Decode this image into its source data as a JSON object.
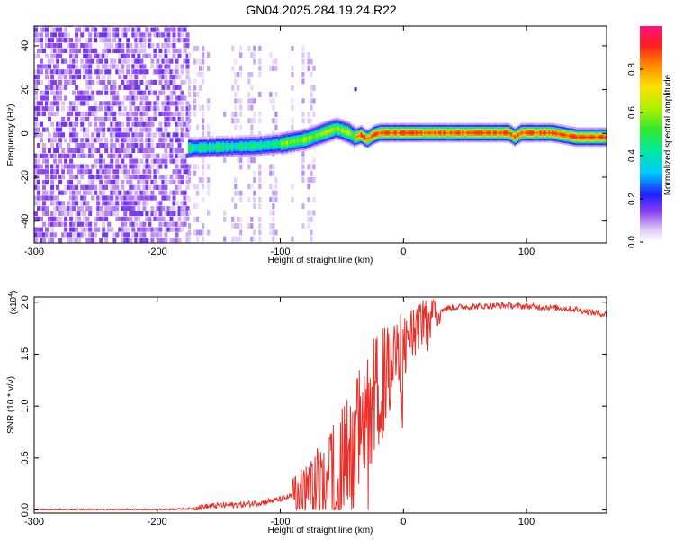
{
  "title": "GN04.2025.284.19.24.R22",
  "chart_data": [
    {
      "type": "heatmap",
      "title": "GN04.2025.284.19.24.R22",
      "xlabel": "Height of straight line (km)",
      "ylabel": "Frequency (Hz)",
      "xlim": [
        -300,
        165
      ],
      "ylim": [
        -50,
        49
      ],
      "xticks": [
        -300,
        -200,
        -100,
        0,
        100
      ],
      "yticks": [
        -40,
        -20,
        0,
        20,
        40
      ],
      "colorbar": {
        "label": "Normalized spectral amplitude",
        "range": [
          0,
          1
        ],
        "ticks": [
          "0.0",
          "0.2",
          "0.4",
          "0.6",
          "0.8"
        ]
      },
      "noise_region_km": [
        -300,
        -175
      ],
      "sparse_region_km": [
        -175,
        -100
      ],
      "signal_track": {
        "x": [
          -175,
          -150,
          -120,
          -100,
          -80,
          -65,
          -55,
          -45,
          -40,
          -35,
          -30,
          -25,
          -20,
          0,
          20,
          50,
          85,
          90,
          95,
          120,
          140,
          165
        ],
        "freq": [
          -7,
          -6.5,
          -6,
          -5,
          -3,
          0,
          2,
          0,
          -2,
          -1,
          -3,
          -1,
          0,
          0,
          0,
          0,
          0,
          -2,
          0,
          0,
          -2,
          -2
        ]
      }
    },
    {
      "type": "line",
      "xlabel": "Height of straight line (km)",
      "ylabel": "SNR (10 * v/v)",
      "yscale_label": "(x10^4)",
      "xlim": [
        -300,
        165
      ],
      "ylim": [
        -0.03,
        2.05
      ],
      "xticks": [
        -300,
        -200,
        -100,
        0,
        100
      ],
      "yticks": [
        "0.0",
        "0.5",
        "1.0",
        "1.5",
        "2.0"
      ],
      "series": [
        {
          "name": "SNR",
          "color": "#e8302a",
          "x": [
            -300,
            -200,
            -170,
            -150,
            -130,
            -115,
            -100,
            -85,
            -70,
            -55,
            -45,
            -35,
            -25,
            -15,
            -5,
            5,
            15,
            25,
            40,
            60,
            80,
            100,
            120,
            140,
            165
          ],
          "y": [
            0.0,
            0.0,
            0.01,
            0.03,
            0.04,
            0.06,
            0.09,
            0.14,
            0.22,
            0.35,
            0.52,
            0.78,
            1.05,
            1.25,
            1.45,
            1.65,
            1.82,
            1.92,
            1.95,
            1.96,
            1.97,
            1.96,
            1.95,
            1.93,
            1.88
          ]
        }
      ]
    }
  ]
}
